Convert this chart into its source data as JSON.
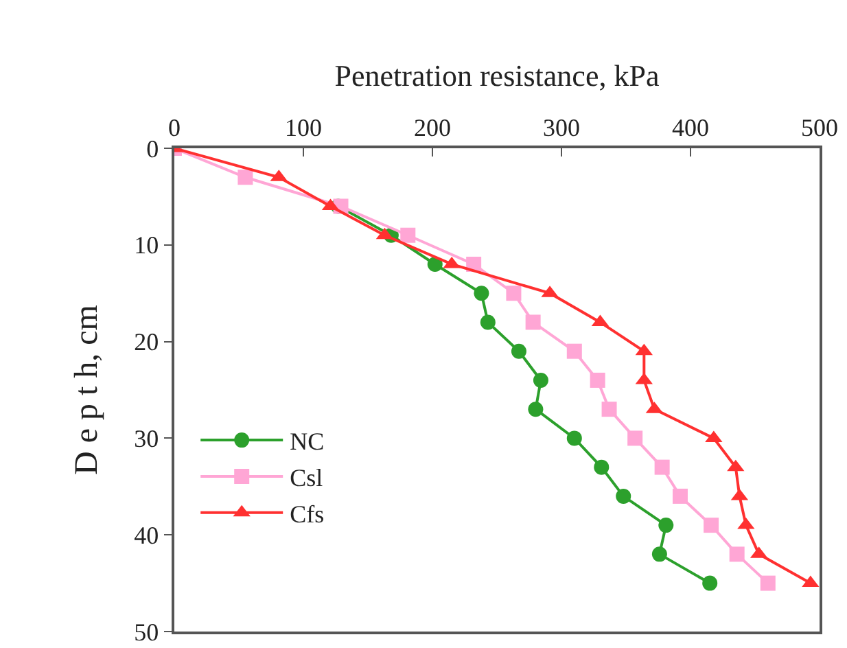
{
  "chart_data": {
    "type": "line",
    "xlabel": "Penetration resistance, kPa",
    "ylabel": "D e p t h, cm",
    "xlim": [
      0,
      500
    ],
    "xticks": [
      0,
      100,
      200,
      300,
      400,
      500
    ],
    "ylim": [
      50,
      0
    ],
    "yticks": [
      0,
      10,
      20,
      30,
      40,
      50
    ],
    "grid": false,
    "legend": "left",
    "series": [
      {
        "name": "NC",
        "color": "#2ca02c",
        "marker": "circle",
        "x": [
          null,
          null,
          127,
          168,
          202,
          238,
          243,
          267,
          284,
          280,
          310,
          331,
          348,
          381,
          376,
          415
        ],
        "values": [
          null,
          null,
          6,
          9,
          12,
          15,
          18,
          21,
          24,
          27,
          30,
          33,
          36,
          39,
          42,
          45
        ]
      },
      {
        "name": "Csl",
        "color": "#ffa6d5",
        "marker": "square",
        "x": [
          0,
          55,
          129,
          181,
          232,
          263,
          278,
          310,
          328,
          337,
          357,
          378,
          392,
          416,
          436,
          460
        ],
        "values": [
          0,
          3,
          6,
          9,
          12,
          15,
          18,
          21,
          24,
          27,
          30,
          33,
          36,
          39,
          42,
          45
        ]
      },
      {
        "name": "Cfs",
        "color": "#ff3030",
        "marker": "triangle",
        "x": [
          0,
          81,
          121,
          163,
          215,
          291,
          330,
          364,
          364,
          372,
          418,
          435,
          438,
          443,
          453,
          493
        ],
        "values": [
          0,
          3,
          6,
          9,
          12,
          15,
          18,
          21,
          24,
          27,
          30,
          33,
          36,
          39,
          42,
          45
        ]
      }
    ]
  }
}
